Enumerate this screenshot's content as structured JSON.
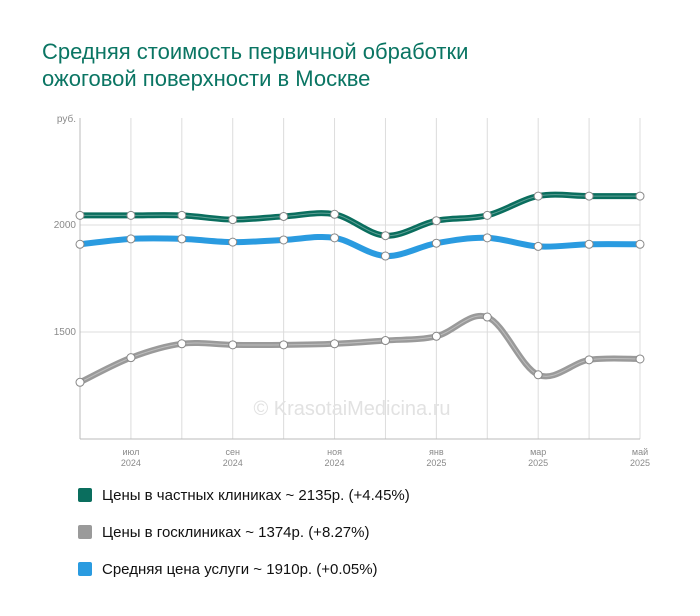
{
  "header": {
    "title_line1": "Средняя стоимость первичной обработки",
    "title_line2": "ожоговой поверхности в Москве"
  },
  "watermark": "© KrasotaiMedicina.ru",
  "chart_data": {
    "type": "line",
    "ylabel": "руб.",
    "ylim": [
      1000,
      2500
    ],
    "yticks": [
      1500,
      2000
    ],
    "x_points": [
      "2024-06",
      "2024-07",
      "2024-08",
      "2024-09",
      "2024-10",
      "2024-11",
      "2024-12",
      "2025-01",
      "2025-02",
      "2025-03",
      "2025-04",
      "2025-05"
    ],
    "x_tick_labels": [
      {
        "month": "июл",
        "year": "2024"
      },
      {
        "month": "сен",
        "year": "2024"
      },
      {
        "month": "ноя",
        "year": "2024"
      },
      {
        "month": "янв",
        "year": "2025"
      },
      {
        "month": "мар",
        "year": "2025"
      },
      {
        "month": "май",
        "year": "2025"
      }
    ],
    "grid": true,
    "legend_position": "bottom",
    "series": [
      {
        "name": "Цены в частных клиниках ~ 2135р. (+4.45%)",
        "color": "#0a6e5e",
        "values": [
          2045,
          2045,
          2045,
          2025,
          2040,
          2050,
          1950,
          2020,
          2045,
          2135,
          2135,
          2135
        ]
      },
      {
        "name": "Цены в госклиниках ~ 1374р. (+8.27%)",
        "color": "#9a9a9a",
        "values": [
          1265,
          1380,
          1445,
          1440,
          1440,
          1445,
          1460,
          1480,
          1570,
          1300,
          1370,
          1374
        ]
      },
      {
        "name": "Средняя цена услуги ~ 1910р. (+0.05%)",
        "color": "#2a9be0",
        "values": [
          1910,
          1935,
          1935,
          1920,
          1930,
          1940,
          1855,
          1915,
          1940,
          1900,
          1910,
          1910
        ]
      }
    ]
  }
}
